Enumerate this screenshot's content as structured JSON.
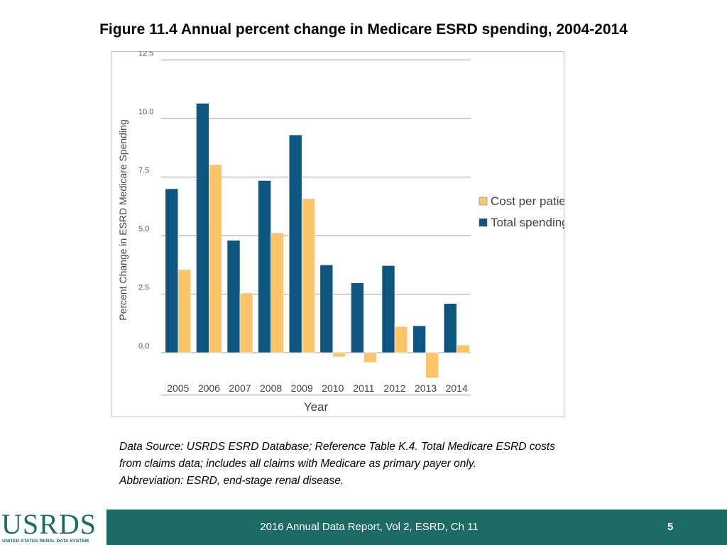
{
  "title": "Figure 11.4 Annual percent change in Medicare ESRD spending, 2004-2014",
  "chart_data": {
    "type": "bar",
    "categories": [
      "2005",
      "2006",
      "2007",
      "2008",
      "2009",
      "2010",
      "2011",
      "2012",
      "2013",
      "2014"
    ],
    "series": [
      {
        "name": "Total spending",
        "color": "#0e567f",
        "values": [
          7.0,
          10.65,
          4.8,
          7.35,
          9.3,
          3.75,
          2.98,
          3.72,
          1.15,
          2.1
        ]
      },
      {
        "name": "Cost per patient year",
        "color": "#fbc56b",
        "values": [
          3.55,
          8.03,
          2.55,
          5.12,
          6.58,
          -0.18,
          -0.42,
          1.12,
          -1.08,
          0.33
        ]
      }
    ],
    "legend": [
      "Cost per patient year",
      "Total spending"
    ],
    "legend_position": "right",
    "yticks": [
      "12.5",
      "10.0",
      "7.5",
      "5.0",
      "2.5",
      "0.0"
    ],
    "ylim": [
      -1.2,
      12.5
    ],
    "xlabel": "Year",
    "ylabel": "Percent Change in ESRD Medicare Spending",
    "grid": true
  },
  "source": {
    "line1": "Data Source: USRDS ESRD Database; Reference Table K.4. Total Medicare ESRD costs",
    "line2": "from claims data; includes all claims with Medicare as primary payer only.",
    "line3": "Abbreviation: ESRD, end-stage renal disease."
  },
  "footer": {
    "logo_text": "USRDS",
    "logo_subtitle": "UNITED STATES RENAL DATA SYSTEM",
    "report": "2016 Annual Data Report, Vol 2, ESRD, Ch 11",
    "page": "5",
    "bar_color": "#1c6b65"
  }
}
